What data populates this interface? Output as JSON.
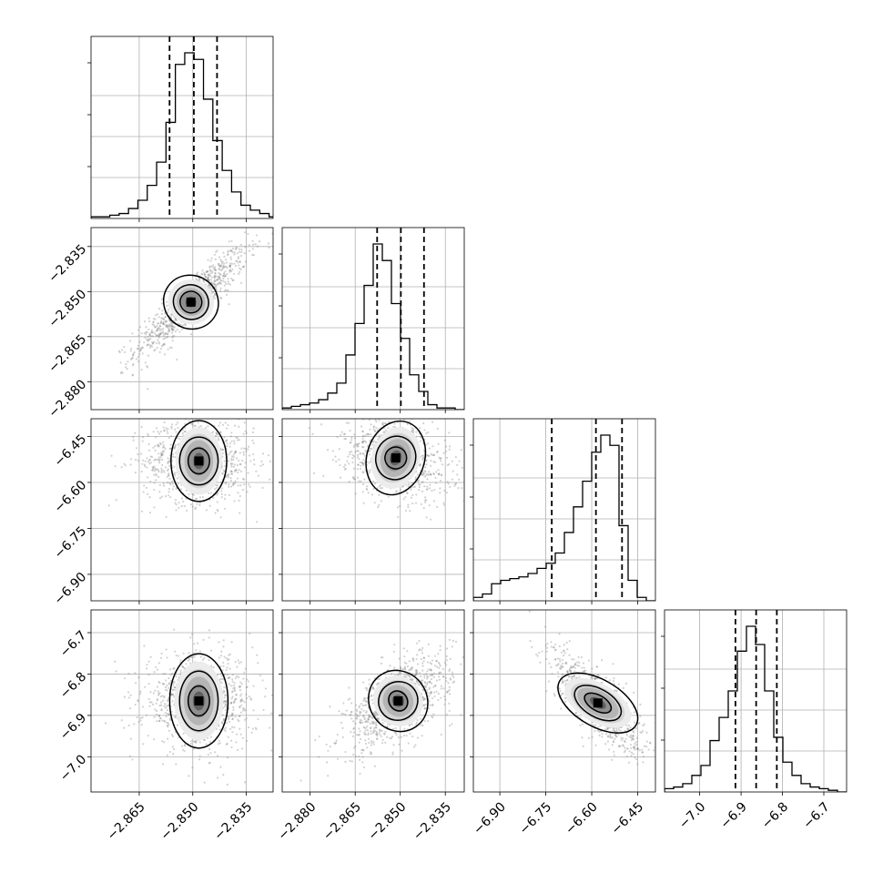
{
  "chart_data": {
    "type": "corner",
    "parameters": [
      {
        "range": [
          -2.8785,
          -2.8275
        ],
        "ticks": [
          -2.865,
          -2.85,
          -2.835
        ],
        "tick_labels": [
          "−2.865",
          "−2.850",
          "−2.835"
        ],
        "quantiles": [
          -2.8565,
          -2.8497,
          -2.8432
        ],
        "median": -2.8497,
        "sigma": 0.0068
      },
      {
        "range": [
          -2.8893,
          -2.8287
        ],
        "ticks": [
          -2.88,
          -2.865,
          -2.85,
          -2.835
        ],
        "tick_labels": [
          "−2.880",
          "−2.865",
          "−2.850",
          "−2.835"
        ],
        "quantiles": [
          -2.8577,
          -2.8498,
          -2.8421
        ],
        "median": -2.8498,
        "sigma": 0.0078
      },
      {
        "range": [
          -6.9864,
          -6.3921
        ],
        "ticks": [
          -6.9,
          -6.75,
          -6.6,
          -6.45
        ],
        "tick_labels": [
          "−6.90",
          "−6.75",
          "−6.60",
          "−6.45"
        ],
        "quantiles": [
          -6.7305,
          -6.5863,
          -6.5011
        ],
        "median": -6.5863,
        "sigma": 0.06
      },
      {
        "range": [
          -7.085,
          -6.645
        ],
        "ticks": [
          -7.0,
          -6.9,
          -6.8,
          -6.7
        ],
        "tick_labels": [
          "−7.0",
          "−6.9",
          "−6.8",
          "−6.7"
        ],
        "quantiles": [
          -6.9136,
          -6.8636,
          -6.8136
        ],
        "median": -6.8636,
        "sigma": 0.05
      }
    ],
    "histograms": [
      {
        "edges": [
          -2.8785,
          -2.826
        ],
        "counts": [
          1,
          1,
          2,
          3,
          6,
          11,
          20,
          34,
          58,
          93,
          100,
          96,
          72,
          47,
          29,
          16,
          8,
          5,
          3,
          1
        ]
      },
      {
        "edges": [
          -2.8893,
          -2.8287
        ],
        "counts": [
          1,
          2,
          3,
          4,
          6,
          10,
          16,
          33,
          52,
          75,
          100,
          90,
          64,
          43,
          21,
          11,
          3,
          1,
          1,
          0
        ]
      },
      {
        "edges": [
          -6.9864,
          -6.3921
        ],
        "counts": [
          2,
          4,
          10,
          12,
          13,
          14,
          16,
          19,
          22,
          28,
          40,
          55,
          70,
          87,
          97,
          91,
          44,
          12,
          2,
          0
        ]
      },
      {
        "edges": [
          -7.085,
          -6.645
        ],
        "counts": [
          2,
          3,
          5,
          10,
          16,
          31,
          45,
          61,
          85,
          100,
          89,
          61,
          33,
          18,
          10,
          5,
          3,
          2,
          1,
          0
        ]
      }
    ],
    "pairs": [
      {
        "row": 1,
        "col": 0,
        "corr": 0.9,
        "core": [
          -2.8505,
          -2.8535
        ],
        "contours": [
          [
            0.0025,
            0.0055
          ],
          [
            0.004,
            0.009
          ],
          [
            0.0062,
            0.014
          ]
        ]
      },
      {
        "row": 2,
        "col": 0,
        "corr": 0.0,
        "core": [
          -2.8483,
          -6.53
        ],
        "contours": [
          [
            0.0025,
            0.035
          ],
          [
            0.0045,
            0.065
          ],
          [
            0.0065,
            0.11
          ]
        ]
      },
      {
        "row": 2,
        "col": 1,
        "corr": -0.3,
        "core": [
          -2.8515,
          -6.52
        ],
        "contours": [
          [
            0.003,
            0.035
          ],
          [
            0.0055,
            0.07
          ],
          [
            0.008,
            0.12
          ]
        ]
      },
      {
        "row": 3,
        "col": 0,
        "corr": 0.0,
        "core": [
          -2.8483,
          -6.865
        ],
        "contours": [
          [
            0.0025,
            0.03
          ],
          [
            0.0045,
            0.06
          ],
          [
            0.0068,
            0.095
          ]
        ]
      },
      {
        "row": 3,
        "col": 1,
        "corr": 0.6,
        "core": [
          -2.8507,
          -6.865
        ],
        "contours": [
          [
            0.0025,
            0.03
          ],
          [
            0.0055,
            0.055
          ],
          [
            0.008,
            0.09
          ]
        ]
      },
      {
        "row": 3,
        "col": 2,
        "corr": -0.75,
        "core": [
          -6.58,
          -6.87
        ],
        "contours": [
          [
            0.04,
            0.025
          ],
          [
            0.07,
            0.045
          ],
          [
            0.12,
            0.075
          ]
        ]
      }
    ],
    "contour_levels": 3,
    "grid": true,
    "line_color": "#000000",
    "point_color": "#7f7f7f",
    "density_cmap": [
      "#ffffff",
      "#000000"
    ]
  }
}
